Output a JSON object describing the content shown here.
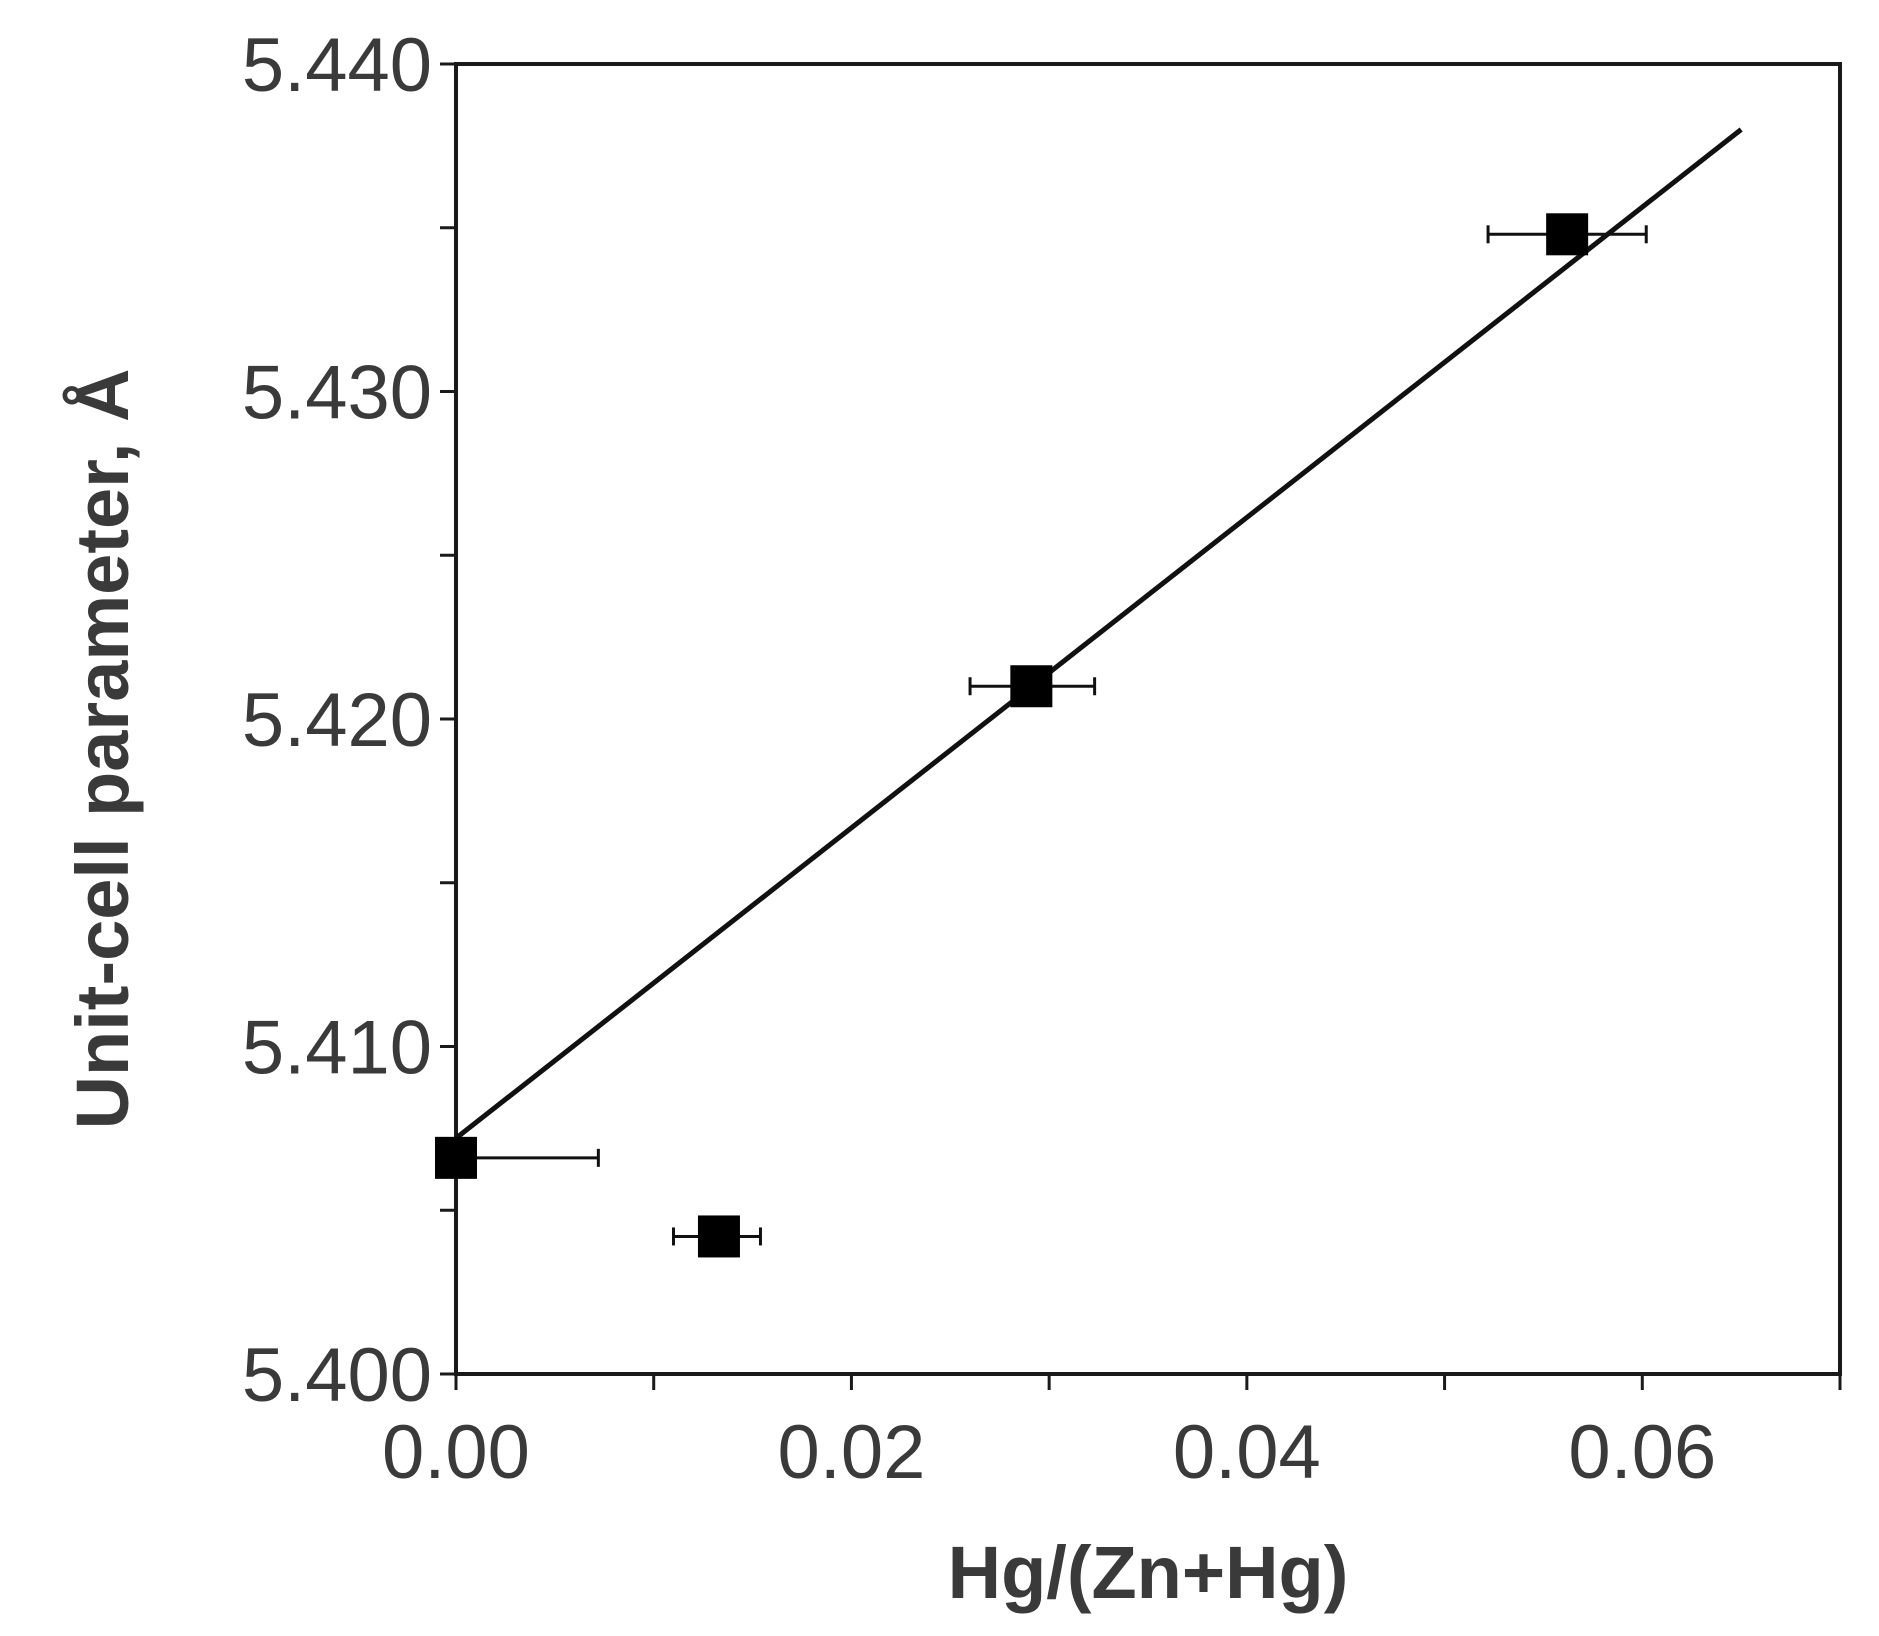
{
  "chart_data": {
    "type": "scatter",
    "title": "",
    "xlabel": "Hg/(Zn+Hg)",
    "ylabel": "Unit-cell parameter, Å",
    "xlim": [
      0,
      0.07
    ],
    "ylim": [
      5.4,
      5.44
    ],
    "x_ticks": [
      "0.00",
      "0.02",
      "0.04",
      "0.06"
    ],
    "x_tick_values": [
      0,
      0.02,
      0.04,
      0.06
    ],
    "x_minor_ticks": [
      0.01,
      0.03,
      0.05,
      0.07
    ],
    "y_ticks": [
      "5.400",
      "5.410",
      "5.420",
      "5.430",
      "5.440"
    ],
    "y_tick_values": [
      5.4,
      5.41,
      5.42,
      5.43,
      5.44
    ],
    "y_minor_ticks": [
      5.405,
      5.415,
      5.425,
      5.435
    ],
    "grid": false,
    "series": [
      {
        "marker": "square",
        "color": "#000000",
        "points": [
          {
            "x": 0.0,
            "y": 5.4066,
            "xerr_minus": 0.0,
            "xerr_plus": 0.0072
          },
          {
            "x": 0.0133,
            "y": 5.4042,
            "xerr_minus": 0.0023,
            "xerr_plus": 0.0021
          },
          {
            "x": 0.0291,
            "y": 5.421,
            "xerr_minus": 0.0031,
            "xerr_plus": 0.0032
          },
          {
            "x": 0.0562,
            "y": 5.4348,
            "xerr_minus": 0.004,
            "xerr_plus": 0.004
          }
        ]
      }
    ],
    "fit_line": {
      "color": "#111111",
      "x": [
        0.0,
        0.065
      ],
      "y": [
        5.4072,
        5.438
      ]
    }
  }
}
